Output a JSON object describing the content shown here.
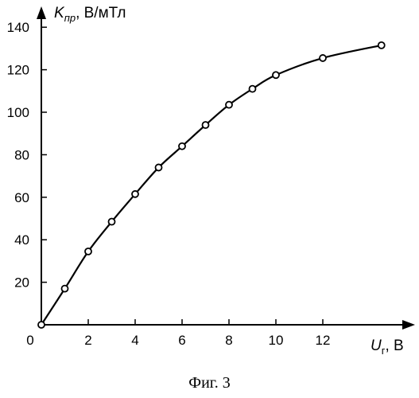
{
  "chart_data": {
    "type": "line",
    "title": "",
    "ylabel": {
      "main": "K",
      "sub": "пр",
      "unit": ", В/мТл"
    },
    "xlabel": {
      "main": "U",
      "sub": "г",
      "unit": ", В"
    },
    "x_ticks": [
      "0",
      "2",
      "4",
      "6",
      "8",
      "10",
      "12"
    ],
    "y_ticks": [
      "20",
      "40",
      "60",
      "80",
      "100",
      "120",
      "140"
    ],
    "xlim": [
      0,
      14.6
    ],
    "ylim": [
      0,
      144
    ],
    "grid": false,
    "series": [
      {
        "x": [
          0,
          1,
          2,
          3,
          4,
          5,
          6,
          7,
          8,
          9,
          10,
          12,
          14.5
        ],
        "y": [
          0,
          17,
          34.5,
          48.5,
          61.5,
          74,
          84,
          94,
          103.5,
          111,
          117.5,
          125.5,
          131.5
        ]
      }
    ]
  },
  "caption": "Фиг. 3"
}
